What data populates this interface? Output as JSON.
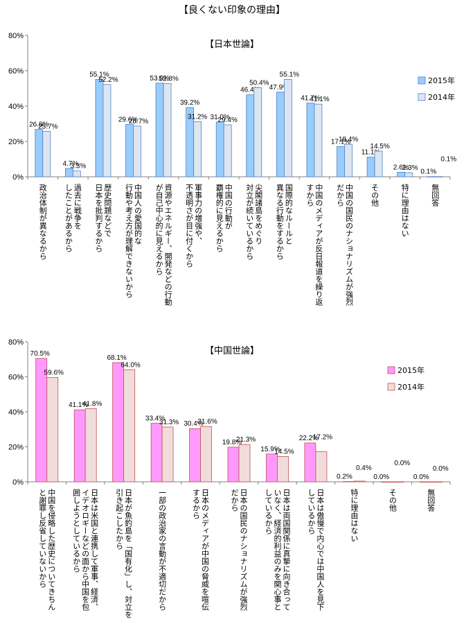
{
  "page": {
    "title": "【良くない印象の理由】"
  },
  "chart_data": [
    {
      "type": "bar",
      "title": "【日本世論】",
      "ylim": [
        0,
        80
      ],
      "yticks": [
        "0%",
        "20%",
        "40%",
        "60%",
        "80%"
      ],
      "grid": false,
      "legend_position": "right",
      "categories": [
        [
          "政治体制が異なるから"
        ],
        [
          "過去に戦争を",
          "したことがあるから"
        ],
        [
          "歴史問題などで",
          "日本を批判するから"
        ],
        [
          "中国人の愛国的な",
          "行動や考え方が理解できないから"
        ],
        [
          "資源やエネルギー、開発などの行動",
          "が自己中心的に見えるから"
        ],
        [
          "軍事力の増強や、",
          "不透明さが目に付くから"
        ],
        [
          "中国の行動が",
          "覇権的に見えるから"
        ],
        [
          "尖閣諸島をめぐり",
          "対立が続いているから"
        ],
        [
          "国際的なルールと",
          "異なる行動をするから"
        ],
        [
          "中国のメディアが反日報道を繰り返",
          "すから"
        ],
        [
          "中国の国民のナショナリズムが強烈",
          "だから"
        ],
        [
          "その他"
        ],
        [
          "特に理由はない"
        ],
        [
          "無回答"
        ]
      ],
      "series": [
        {
          "name": "2015年",
          "color": "#99CCFF",
          "values": [
            26.8,
            4.7,
            55.1,
            29.6,
            53.0,
            39.2,
            31.0,
            46.4,
            47.9,
            41.7,
            17.1,
            11.1,
            2.6,
            0.1
          ],
          "labels": [
            "26.8%",
            "4.7%",
            "55.1%",
            "29.6%",
            "53.0%",
            "39.2%",
            "31.0%",
            "46.4%",
            "47.9%",
            "41.7%",
            "17.1%",
            "11.1%",
            "2.6%",
            "0.1%"
          ]
        },
        {
          "name": "2014年",
          "color": "#DCE6F2",
          "values": [
            25.7,
            3.3,
            52.2,
            28.7,
            52.8,
            31.2,
            29.4,
            50.4,
            55.1,
            41.1,
            18.4,
            14.5,
            2.3,
            0.1
          ],
          "labels": [
            "25.7%",
            "3.3%",
            "52.2%",
            "28.7%",
            "52.8%",
            "31.2%",
            "29.4%",
            "50.4%",
            "55.1%",
            "41.1%",
            "18.4%",
            "14.5%",
            "2.3%",
            "0.1%"
          ]
        }
      ]
    },
    {
      "type": "bar",
      "title": "【中国世論】",
      "ylim": [
        0,
        80
      ],
      "yticks": [
        "0%",
        "20%",
        "40%",
        "60%",
        "80%"
      ],
      "grid": false,
      "legend_position": "right",
      "categories": [
        [
          "中国を侵略した歴史についてきちん",
          "と謝罪し反省していないから"
        ],
        [
          "日本は米国と連携して軍事、経済、",
          "イデオロギーなどの面から中国を包",
          "囲しようとしているから"
        ],
        [
          "日本が魚釣島を「国有化」し、対立を",
          "引き起こしたから"
        ],
        [
          "一部の政治家の言動が不適切だから"
        ],
        [
          "日本のメディアが中国の脅威を喧伝",
          "するから"
        ],
        [
          "日本の国民のナショナリズムが強烈",
          "だから"
        ],
        [
          "日本は両国関係に真摯に向き合って",
          "いなく、経済的利益のみを関心事と",
          "しているから"
        ],
        [
          "日本は傲慢で内心では中国人を見下",
          "しているから"
        ],
        [
          "特に理由はない"
        ],
        [
          "その他"
        ],
        [
          "無回答"
        ]
      ],
      "series": [
        {
          "name": "2015年",
          "color": "#FF99FF",
          "values": [
            70.5,
            41.1,
            68.1,
            33.4,
            30.4,
            19.8,
            15.9,
            22.2,
            0.2,
            0.0,
            0.0
          ],
          "labels": [
            "70.5%",
            "41.1%",
            "68.1%",
            "33.4%",
            "30.4%",
            "19.8%",
            "15.9%",
            "22.2%",
            "0.2%",
            "0.0%",
            "0.0%"
          ]
        },
        {
          "name": "2014年",
          "color": "#F2DCDB",
          "values": [
            59.6,
            41.8,
            64.0,
            31.3,
            31.6,
            21.3,
            14.5,
            17.2,
            0.4,
            0.0,
            0.0
          ],
          "labels": [
            "59.6%",
            "41.8%",
            "64.0%",
            "31.3%",
            "31.6%",
            "21.3%",
            "14.5%",
            "17.2%",
            "0.4%",
            "0.0%",
            "0.0%"
          ]
        }
      ]
    }
  ]
}
